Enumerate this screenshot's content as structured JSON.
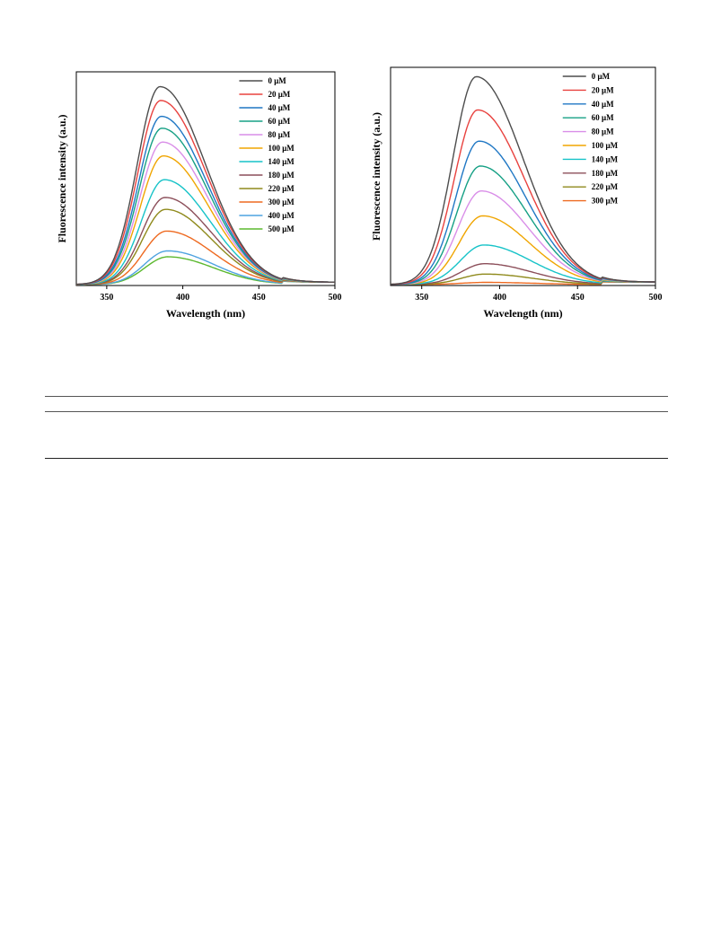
{
  "chart_data": [
    {
      "type": "line",
      "xlabel": "Wavelength (nm)",
      "ylabel": "Fluorescence intensity (a.u.)",
      "xlim": [
        330,
        500
      ],
      "ylim": [
        0,
        1.08
      ],
      "xticks": [
        350,
        400,
        450,
        500
      ],
      "legend_position": "top-right",
      "peak_wavelength": 385,
      "series": [
        {
          "name": "0 μM",
          "color": "#4d4d4d",
          "peak": 1.0
        },
        {
          "name": "20 μM",
          "color": "#e8423f",
          "peak": 0.93
        },
        {
          "name": "40 μM",
          "color": "#1f77c4",
          "peak": 0.85
        },
        {
          "name": "60 μM",
          "color": "#16a085",
          "peak": 0.79
        },
        {
          "name": "80 μM",
          "color": "#d98ee8",
          "peak": 0.72
        },
        {
          "name": "100 μM",
          "color": "#f0a500",
          "peak": 0.65
        },
        {
          "name": "140 μM",
          "color": "#17c3c8",
          "peak": 0.53
        },
        {
          "name": "180 μM",
          "color": "#8c4f5a",
          "peak": 0.44
        },
        {
          "name": "220 μM",
          "color": "#8f8a1c",
          "peak": 0.38
        },
        {
          "name": "300 μM",
          "color": "#ee6a21",
          "peak": 0.27
        },
        {
          "name": "400 μM",
          "color": "#4fa3e0",
          "peak": 0.17
        },
        {
          "name": "500 μM",
          "color": "#5bb82e",
          "peak": 0.14
        }
      ]
    },
    {
      "type": "line",
      "xlabel": "Wavelength (nm)",
      "ylabel": "Fluorescence intensity (a.u.)",
      "xlim": [
        330,
        500
      ],
      "ylim": [
        0,
        1.05
      ],
      "xticks": [
        350,
        400,
        450,
        500
      ],
      "legend_position": "top-right",
      "peak_wavelength": 385,
      "series": [
        {
          "name": "0 μM",
          "color": "#4d4d4d",
          "peak": 1.0
        },
        {
          "name": "20 μM",
          "color": "#e8423f",
          "peak": 0.84
        },
        {
          "name": "40 μM",
          "color": "#1f77c4",
          "peak": 0.69
        },
        {
          "name": "60 μM",
          "color": "#16a085",
          "peak": 0.57
        },
        {
          "name": "80 μM",
          "color": "#d98ee8",
          "peak": 0.45
        },
        {
          "name": "100 μM",
          "color": "#f0a500",
          "peak": 0.33
        },
        {
          "name": "140 μM",
          "color": "#17c3c8",
          "peak": 0.19
        },
        {
          "name": "180 μM",
          "color": "#8c4f5a",
          "peak": 0.1
        },
        {
          "name": "220 μM",
          "color": "#8f8a1c",
          "peak": 0.05
        },
        {
          "name": "300 μM",
          "color": "#ee6a21",
          "peak": 0.01
        }
      ]
    }
  ]
}
